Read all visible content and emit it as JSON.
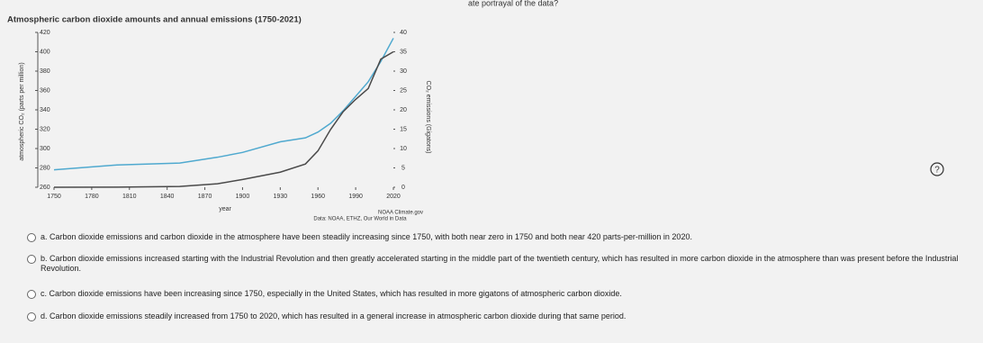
{
  "question_fragment": "ate portrayal of the data?",
  "chart_data": {
    "type": "line",
    "title": "Atmospheric carbon dioxide amounts and annual emissions (1750-2021)",
    "x_label": "year",
    "y_label": "atmospheric CO₂ (parts per million)",
    "y2_label": "CO₂ emissions (Gigatons)",
    "source_1": "NOAA Climate.gov",
    "source_2": "Data: NOAA, ETHZ, Our World in Data",
    "x": [
      1750,
      1800,
      1850,
      1880,
      1900,
      1930,
      1950,
      1960,
      1970,
      1980,
      1990,
      2000,
      2010,
      2020
    ],
    "series": [
      {
        "name": "atmospheric CO₂",
        "color": "#4fa9cf",
        "values": [
          278,
          283,
          285,
          291,
          296,
          307,
          311,
          317,
          326,
          339,
          354,
          369,
          390,
          414
        ]
      },
      {
        "name": "CO₂ emissions",
        "color": "#4a4a4a",
        "axis": "y2",
        "values": [
          0,
          0.03,
          0.2,
          0.9,
          2.0,
          3.9,
          6.0,
          9.4,
          14.9,
          19.5,
          22.7,
          25.5,
          33.1,
          35
        ]
      }
    ],
    "xlim": [
      1750,
      2020
    ],
    "xticks": [
      1750,
      1780,
      1810,
      1840,
      1870,
      1900,
      1930,
      1960,
      1990,
      2020
    ],
    "ylim": [
      260,
      420
    ],
    "yticks": [
      260,
      280,
      300,
      320,
      340,
      360,
      380,
      400,
      420
    ],
    "y2lim": [
      0,
      40
    ],
    "y2ticks": [
      0,
      5,
      10,
      15,
      20,
      25,
      30,
      35,
      40
    ]
  },
  "options": [
    "a. Carbon dioxide emissions and carbon dioxide in the atmosphere have been steadily increasing since 1750, with both near zero in 1750 and both near 420 parts-per-million in 2020.",
    "b. Carbon dioxide emissions increased starting with the Industrial Revolution and then greatly accelerated starting in the middle part of the twentieth century, which has resulted in more carbon dioxide in the atmosphere than was present before the Industrial Revolution.",
    "c. Carbon dioxide emissions have been increasing since 1750, especially in the United States, which has resulted in more gigatons of atmospheric carbon dioxide.",
    "d. Carbon dioxide emissions steadily increased from 1750 to 2020, which has resulted in a general increase in atmospheric carbon dioxide during that same period."
  ]
}
